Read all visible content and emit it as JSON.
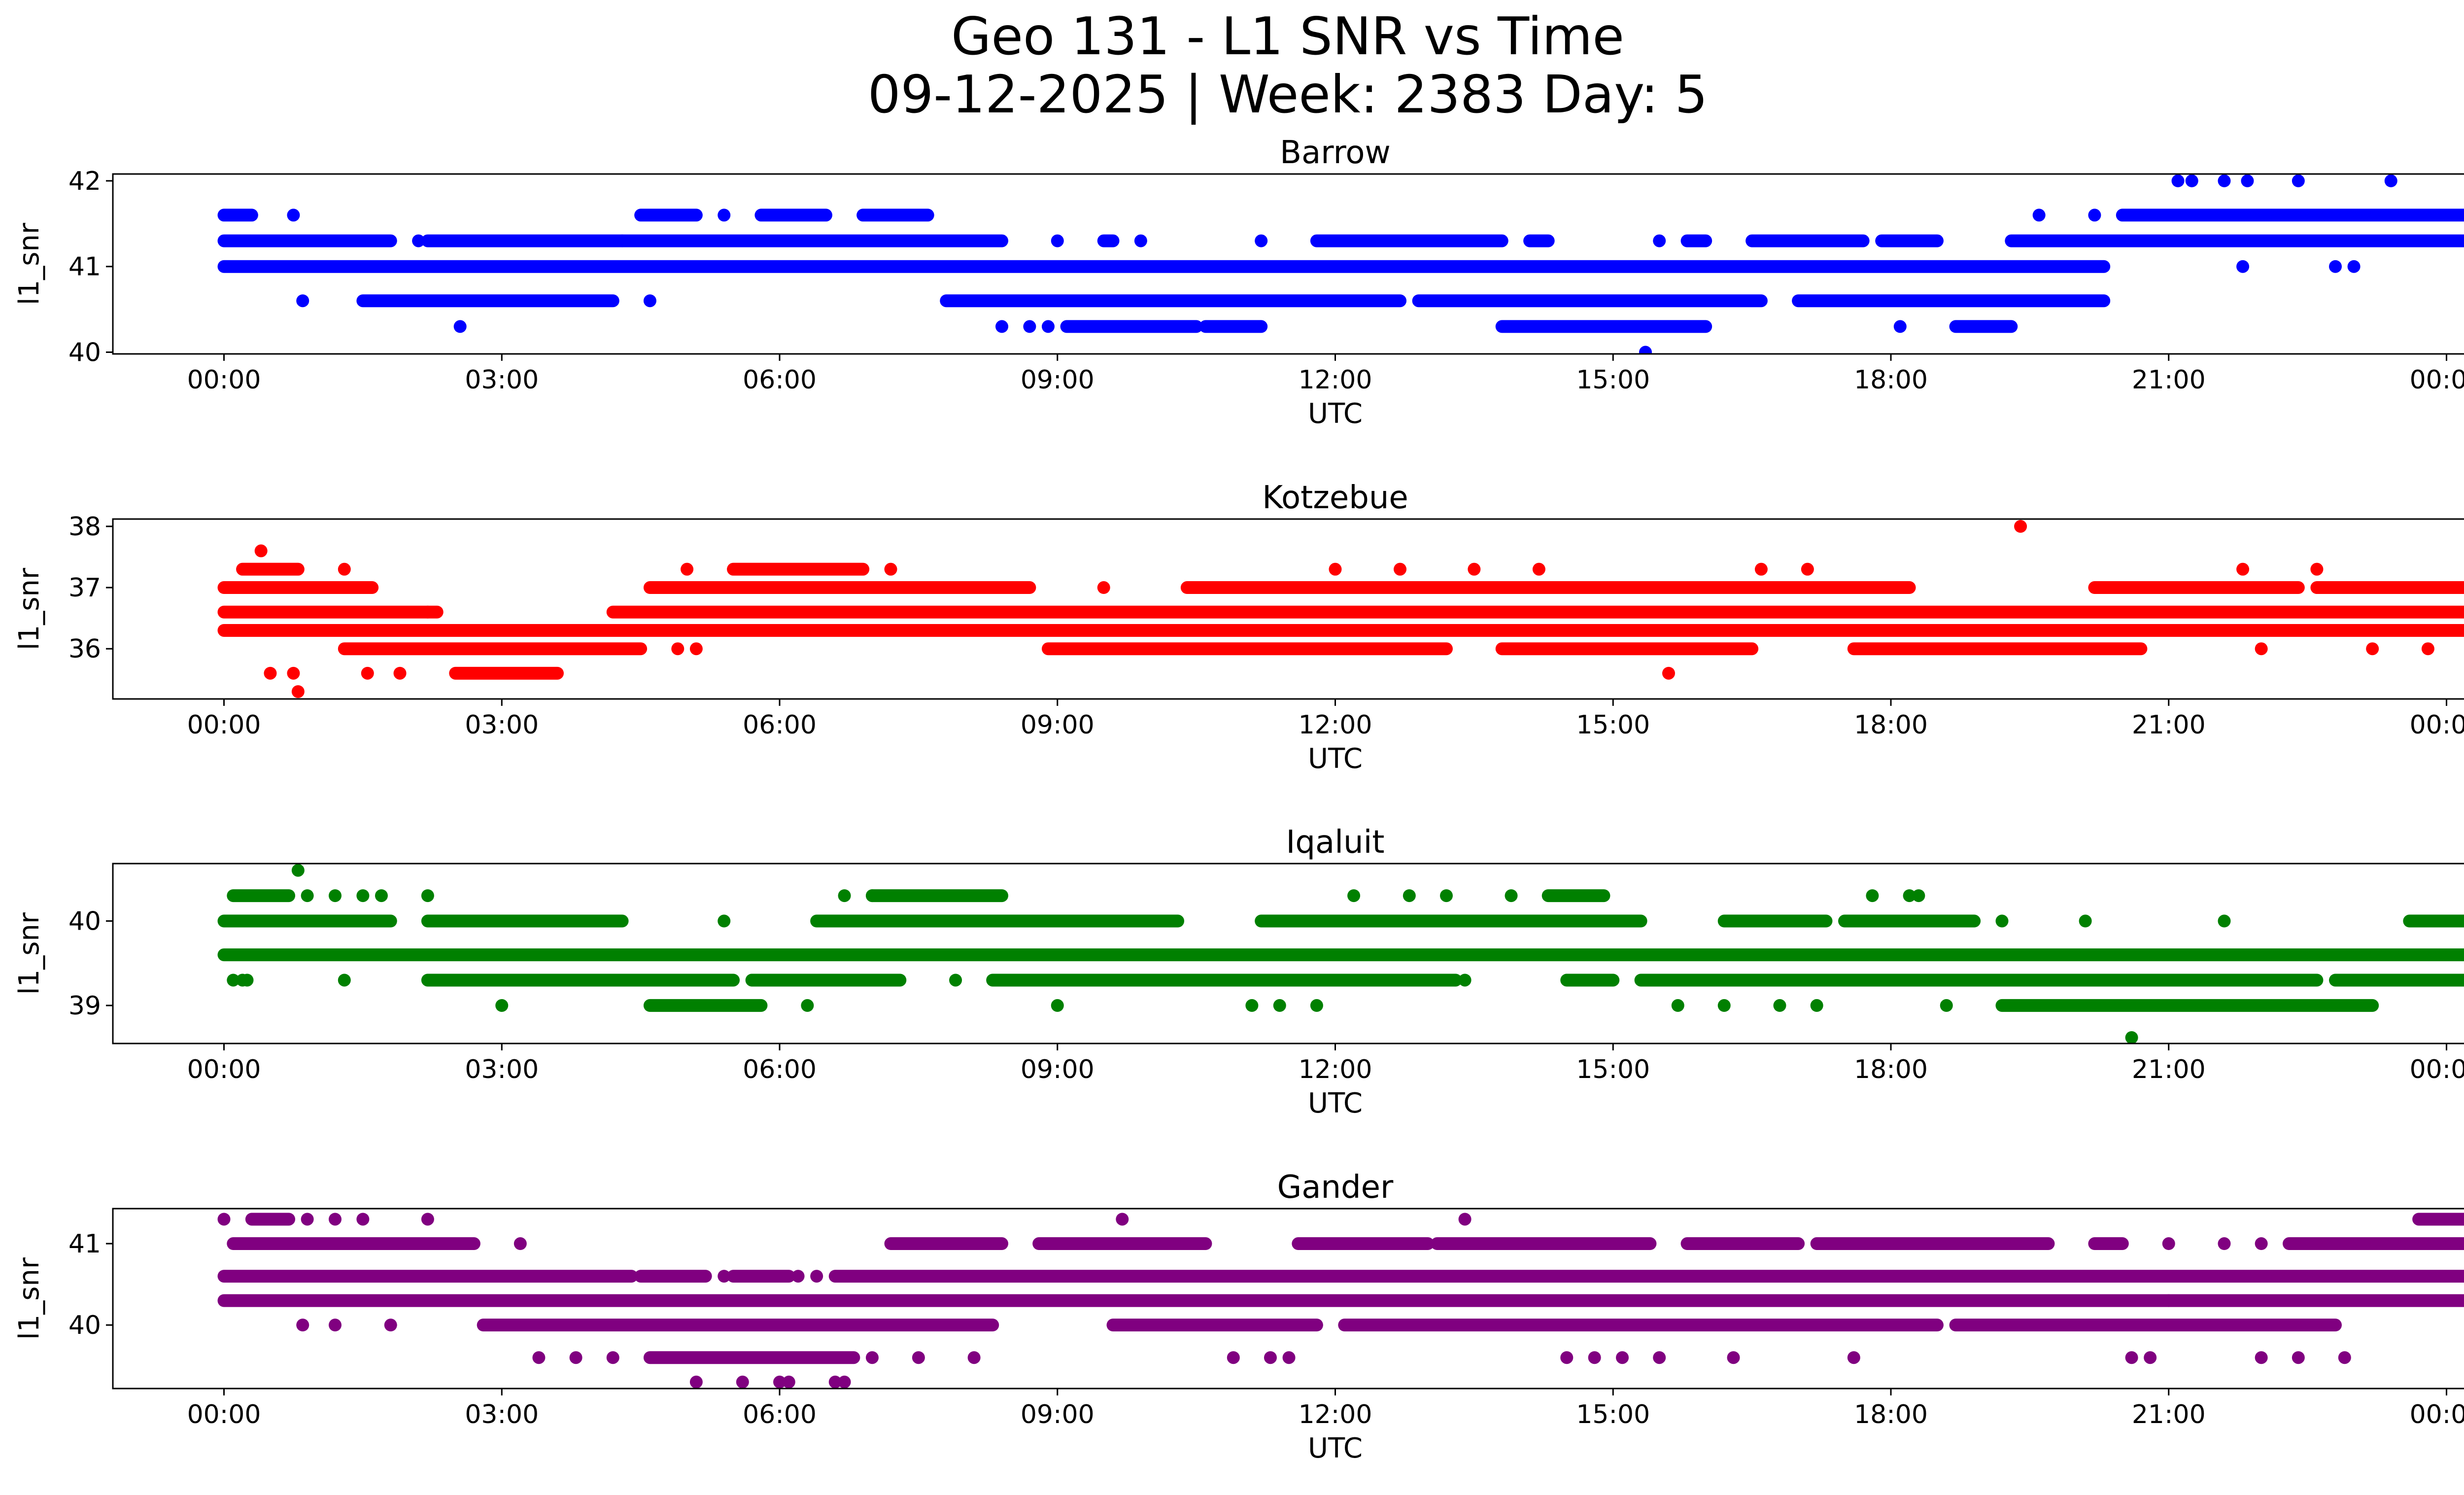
{
  "figure": {
    "title_line1": "Geo 131 - L1 SNR vs Time",
    "title_line2": "09-12-2025 | Week: 2383 Day: 5"
  },
  "x_axis": {
    "label": "UTC",
    "tick_labels": [
      "00:00",
      "03:00",
      "06:00",
      "09:00",
      "12:00",
      "15:00",
      "18:00",
      "21:00",
      "00:00"
    ],
    "tick_hours": [
      0,
      3,
      6,
      9,
      12,
      15,
      18,
      21,
      24
    ],
    "range_hours": [
      -1.2,
      25.2
    ]
  },
  "chart_data": [
    {
      "type": "scatter",
      "title": "Barrow",
      "xlabel": "UTC",
      "ylabel": "l1_snr",
      "color": "#0000ff",
      "ylim": [
        39.98,
        42.08
      ],
      "y_ticks": [
        40,
        41,
        42
      ],
      "y_tick_labels": [
        "40",
        "41",
        "42"
      ],
      "segments": [
        {
          "y": 41.0,
          "spans": [
            [
              0.0,
              20.3
            ]
          ]
        },
        {
          "y": 41.3,
          "spans": [
            [
              0.0,
              1.8
            ],
            [
              2.2,
              4.3
            ],
            [
              4.3,
              8.4
            ],
            [
              9.5,
              9.6
            ],
            [
              11.8,
              13.8
            ],
            [
              14.1,
              14.3
            ],
            [
              15.8,
              16.0
            ],
            [
              16.5,
              17.7
            ],
            [
              17.9,
              18.5
            ],
            [
              19.3,
              25.0
            ]
          ]
        },
        {
          "y": 41.6,
          "spans": [
            [
              0.0,
              0.3
            ],
            [
              4.5,
              5.1
            ],
            [
              5.8,
              6.5
            ],
            [
              6.9,
              7.6
            ],
            [
              20.5,
              25.0
            ]
          ]
        },
        {
          "y": 40.6,
          "spans": [
            [
              1.5,
              4.2
            ],
            [
              7.8,
              12.7
            ],
            [
              12.9,
              16.6
            ],
            [
              17.0,
              20.3
            ]
          ]
        },
        {
          "y": 40.3,
          "spans": [
            [
              9.1,
              10.5
            ],
            [
              10.6,
              11.2
            ],
            [
              13.8,
              16.0
            ],
            [
              18.7,
              19.3
            ]
          ]
        }
      ],
      "points": [
        {
          "x": 0.75,
          "y": 41.6
        },
        {
          "x": 0.85,
          "y": 40.6
        },
        {
          "x": 2.1,
          "y": 41.3
        },
        {
          "x": 2.55,
          "y": 40.3
        },
        {
          "x": 4.6,
          "y": 40.6
        },
        {
          "x": 5.4,
          "y": 41.6
        },
        {
          "x": 8.4,
          "y": 40.3
        },
        {
          "x": 8.7,
          "y": 40.3
        },
        {
          "x": 8.9,
          "y": 40.3
        },
        {
          "x": 9.0,
          "y": 41.3
        },
        {
          "x": 9.9,
          "y": 41.3
        },
        {
          "x": 11.2,
          "y": 41.3
        },
        {
          "x": 15.35,
          "y": 40.0
        },
        {
          "x": 15.5,
          "y": 41.3
        },
        {
          "x": 18.1,
          "y": 40.3
        },
        {
          "x": 19.6,
          "y": 41.6
        },
        {
          "x": 20.2,
          "y": 41.6
        },
        {
          "x": 21.1,
          "y": 42.0
        },
        {
          "x": 21.25,
          "y": 42.0
        },
        {
          "x": 21.6,
          "y": 42.0
        },
        {
          "x": 21.85,
          "y": 42.0
        },
        {
          "x": 22.4,
          "y": 42.0
        },
        {
          "x": 23.4,
          "y": 42.0
        },
        {
          "x": 21.8,
          "y": 41.0
        },
        {
          "x": 22.8,
          "y": 41.0
        },
        {
          "x": 23.0,
          "y": 41.0
        }
      ]
    },
    {
      "type": "scatter",
      "title": "Kotzebue",
      "xlabel": "UTC",
      "ylabel": "l1_snr",
      "color": "#ff0000",
      "ylim": [
        35.18,
        38.12
      ],
      "y_ticks": [
        36,
        37,
        38
      ],
      "y_tick_labels": [
        "36",
        "37",
        "38"
      ],
      "segments": [
        {
          "y": 36.3,
          "spans": [
            [
              0.0,
              25.0
            ]
          ]
        },
        {
          "y": 36.6,
          "spans": [
            [
              0.0,
              2.3
            ],
            [
              4.2,
              25.0
            ]
          ]
        },
        {
          "y": 36.0,
          "spans": [
            [
              1.3,
              4.5
            ],
            [
              8.9,
              13.2
            ],
            [
              13.8,
              16.5
            ],
            [
              17.6,
              20.7
            ]
          ]
        },
        {
          "y": 37.0,
          "spans": [
            [
              0.0,
              1.6
            ],
            [
              4.6,
              8.7
            ],
            [
              10.4,
              18.2
            ],
            [
              20.2,
              22.4
            ],
            [
              22.6,
              23.7
            ],
            [
              23.7,
              25.0
            ]
          ]
        },
        {
          "y": 37.3,
          "spans": [
            [
              0.2,
              0.8
            ],
            [
              5.5,
              6.9
            ]
          ]
        },
        {
          "y": 35.6,
          "spans": [
            [
              2.5,
              3.6
            ]
          ]
        }
      ],
      "points": [
        {
          "x": 0.4,
          "y": 37.6
        },
        {
          "x": 0.5,
          "y": 35.6
        },
        {
          "x": 0.75,
          "y": 35.6
        },
        {
          "x": 0.8,
          "y": 35.3
        },
        {
          "x": 1.3,
          "y": 37.3
        },
        {
          "x": 1.9,
          "y": 35.6
        },
        {
          "x": 1.55,
          "y": 35.6
        },
        {
          "x": 2.2,
          "y": 36.6
        },
        {
          "x": 5.0,
          "y": 37.3
        },
        {
          "x": 4.9,
          "y": 36.0
        },
        {
          "x": 5.1,
          "y": 36.0
        },
        {
          "x": 7.2,
          "y": 37.3
        },
        {
          "x": 9.5,
          "y": 37.0
        },
        {
          "x": 12.0,
          "y": 37.3
        },
        {
          "x": 12.7,
          "y": 37.3
        },
        {
          "x": 13.5,
          "y": 37.3
        },
        {
          "x": 14.2,
          "y": 37.3
        },
        {
          "x": 15.6,
          "y": 35.6
        },
        {
          "x": 16.6,
          "y": 37.3
        },
        {
          "x": 17.1,
          "y": 37.3
        },
        {
          "x": 19.4,
          "y": 38.0
        },
        {
          "x": 21.8,
          "y": 37.3
        },
        {
          "x": 22.6,
          "y": 37.3
        },
        {
          "x": 22.0,
          "y": 36.0
        },
        {
          "x": 23.2,
          "y": 36.0
        },
        {
          "x": 23.8,
          "y": 36.0
        }
      ]
    },
    {
      "type": "scatter",
      "title": "Iqaluit",
      "xlabel": "UTC",
      "ylabel": "l1_snr",
      "color": "#008000",
      "ylim": [
        38.55,
        40.68
      ],
      "y_ticks": [
        39,
        40
      ],
      "y_tick_labels": [
        "39",
        "40"
      ],
      "segments": [
        {
          "y": 39.6,
          "spans": [
            [
              0.0,
              25.0
            ]
          ]
        },
        {
          "y": 40.0,
          "spans": [
            [
              0.0,
              1.8
            ],
            [
              2.2,
              4.3
            ],
            [
              6.4,
              10.3
            ],
            [
              11.2,
              15.3
            ],
            [
              16.2,
              17.3
            ],
            [
              17.5,
              18.9
            ],
            [
              23.6,
              25.0
            ]
          ]
        },
        {
          "y": 39.3,
          "spans": [
            [
              2.2,
              5.5
            ],
            [
              5.7,
              7.3
            ],
            [
              8.3,
              13.3
            ],
            [
              14.5,
              15.0
            ],
            [
              15.3,
              22.6
            ],
            [
              22.8,
              25.0
            ]
          ]
        },
        {
          "y": 39.0,
          "spans": [
            [
              4.6,
              5.8
            ],
            [
              19.2,
              23.2
            ]
          ]
        },
        {
          "y": 40.3,
          "spans": [
            [
              0.1,
              0.7
            ],
            [
              7.0,
              8.4
            ],
            [
              14.3,
              14.9
            ]
          ]
        }
      ],
      "points": [
        {
          "x": 0.1,
          "y": 39.3
        },
        {
          "x": 0.2,
          "y": 39.3
        },
        {
          "x": 0.25,
          "y": 39.3
        },
        {
          "x": 0.8,
          "y": 40.6
        },
        {
          "x": 0.9,
          "y": 40.3
        },
        {
          "x": 1.2,
          "y": 40.3
        },
        {
          "x": 1.5,
          "y": 40.3
        },
        {
          "x": 1.7,
          "y": 40.3
        },
        {
          "x": 1.3,
          "y": 39.3
        },
        {
          "x": 2.2,
          "y": 40.3
        },
        {
          "x": 3.0,
          "y": 39.0
        },
        {
          "x": 5.4,
          "y": 40.0
        },
        {
          "x": 6.3,
          "y": 39.0
        },
        {
          "x": 6.7,
          "y": 40.3
        },
        {
          "x": 7.0,
          "y": 40.3
        },
        {
          "x": 7.9,
          "y": 39.3
        },
        {
          "x": 9.0,
          "y": 39.0
        },
        {
          "x": 11.1,
          "y": 39.0
        },
        {
          "x": 11.4,
          "y": 39.0
        },
        {
          "x": 11.8,
          "y": 39.0
        },
        {
          "x": 12.2,
          "y": 40.3
        },
        {
          "x": 12.8,
          "y": 40.3
        },
        {
          "x": 13.2,
          "y": 40.3
        },
        {
          "x": 13.9,
          "y": 40.3
        },
        {
          "x": 13.4,
          "y": 39.3
        },
        {
          "x": 15.1,
          "y": 40.0
        },
        {
          "x": 15.7,
          "y": 39.0
        },
        {
          "x": 16.2,
          "y": 39.0
        },
        {
          "x": 16.8,
          "y": 39.0
        },
        {
          "x": 17.2,
          "y": 39.0
        },
        {
          "x": 17.8,
          "y": 40.3
        },
        {
          "x": 18.2,
          "y": 40.3
        },
        {
          "x": 18.3,
          "y": 40.3
        },
        {
          "x": 18.6,
          "y": 39.0
        },
        {
          "x": 19.2,
          "y": 40.0
        },
        {
          "x": 20.1,
          "y": 40.0
        },
        {
          "x": 21.6,
          "y": 40.0
        },
        {
          "x": 20.6,
          "y": 38.62
        }
      ]
    },
    {
      "type": "scatter",
      "title": "Gander",
      "xlabel": "UTC",
      "ylabel": "l1_snr",
      "color": "#800080",
      "ylim": [
        39.22,
        41.43
      ],
      "y_ticks": [
        40,
        41
      ],
      "y_tick_labels": [
        "40",
        "41"
      ],
      "segments": [
        {
          "y": 40.6,
          "spans": [
            [
              0.0,
              4.4
            ],
            [
              4.5,
              5.2
            ],
            [
              5.5,
              6.1
            ],
            [
              6.6,
              25.0
            ]
          ]
        },
        {
          "y": 40.3,
          "spans": [
            [
              0.0,
              25.0
            ]
          ]
        },
        {
          "y": 41.0,
          "spans": [
            [
              0.1,
              2.7
            ],
            [
              7.2,
              8.4
            ],
            [
              8.8,
              10.6
            ],
            [
              11.6,
              13.0
            ],
            [
              13.1,
              15.4
            ],
            [
              15.8,
              17.0
            ],
            [
              17.2,
              19.7
            ],
            [
              20.2,
              20.5
            ],
            [
              22.3,
              25.0
            ]
          ]
        },
        {
          "y": 40.0,
          "spans": [
            [
              2.8,
              8.3
            ],
            [
              9.6,
              11.8
            ],
            [
              12.1,
              18.5
            ],
            [
              18.7,
              22.8
            ]
          ]
        },
        {
          "y": 39.6,
          "spans": [
            [
              4.6,
              6.8
            ]
          ]
        },
        {
          "y": 41.3,
          "spans": [
            [
              0.3,
              0.7
            ],
            [
              23.7,
              25.0
            ]
          ]
        }
      ],
      "points": [
        {
          "x": 0.0,
          "y": 41.3
        },
        {
          "x": 0.9,
          "y": 41.3
        },
        {
          "x": 1.2,
          "y": 41.3
        },
        {
          "x": 1.5,
          "y": 41.3
        },
        {
          "x": 2.2,
          "y": 41.3
        },
        {
          "x": 0.85,
          "y": 40.0
        },
        {
          "x": 1.2,
          "y": 40.0
        },
        {
          "x": 1.8,
          "y": 40.0
        },
        {
          "x": 3.2,
          "y": 41.0
        },
        {
          "x": 3.4,
          "y": 39.6
        },
        {
          "x": 3.8,
          "y": 39.6
        },
        {
          "x": 4.2,
          "y": 39.6
        },
        {
          "x": 5.1,
          "y": 39.3
        },
        {
          "x": 5.6,
          "y": 39.3
        },
        {
          "x": 6.0,
          "y": 39.3
        },
        {
          "x": 6.1,
          "y": 39.3
        },
        {
          "x": 6.6,
          "y": 39.3
        },
        {
          "x": 6.7,
          "y": 39.3
        },
        {
          "x": 5.4,
          "y": 40.6
        },
        {
          "x": 6.2,
          "y": 40.6
        },
        {
          "x": 6.4,
          "y": 40.6
        },
        {
          "x": 7.0,
          "y": 39.6
        },
        {
          "x": 7.5,
          "y": 39.6
        },
        {
          "x": 8.1,
          "y": 39.6
        },
        {
          "x": 9.7,
          "y": 41.3
        },
        {
          "x": 10.9,
          "y": 39.6
        },
        {
          "x": 11.3,
          "y": 39.6
        },
        {
          "x": 11.5,
          "y": 39.6
        },
        {
          "x": 13.4,
          "y": 41.3
        },
        {
          "x": 14.5,
          "y": 39.6
        },
        {
          "x": 14.8,
          "y": 39.6
        },
        {
          "x": 15.1,
          "y": 39.6
        },
        {
          "x": 15.5,
          "y": 39.6
        },
        {
          "x": 16.3,
          "y": 39.6
        },
        {
          "x": 17.6,
          "y": 39.6
        },
        {
          "x": 20.6,
          "y": 39.6
        },
        {
          "x": 20.8,
          "y": 39.6
        },
        {
          "x": 21.0,
          "y": 40.3
        },
        {
          "x": 22.0,
          "y": 39.6
        },
        {
          "x": 22.4,
          "y": 39.6
        },
        {
          "x": 22.9,
          "y": 39.6
        },
        {
          "x": 21.6,
          "y": 41.0
        },
        {
          "x": 22.0,
          "y": 41.0
        },
        {
          "x": 21.0,
          "y": 41.0
        }
      ]
    }
  ]
}
